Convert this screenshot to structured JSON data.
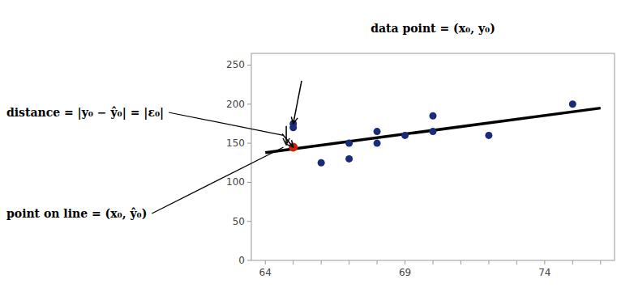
{
  "chart_data": {
    "type": "scatter",
    "x": [
      65,
      65,
      66,
      67,
      67,
      68,
      68,
      69,
      70,
      70,
      72,
      75
    ],
    "values": [
      175,
      170,
      125,
      130,
      150,
      150,
      165,
      160,
      185,
      165,
      160,
      200
    ],
    "color": "#1a2b7a",
    "special_point": {
      "x": 65,
      "y": 145,
      "color": "#cc2200"
    },
    "line": {
      "x": [
        64,
        76
      ],
      "values": [
        138,
        195
      ],
      "color": "#000000"
    },
    "xlim": [
      63.5,
      76.5
    ],
    "ylim": [
      0,
      265
    ],
    "xticks": [
      64,
      {
        "value": 65,
        "label": null
      },
      {
        "value": 66,
        "label": null
      },
      {
        "value": 67,
        "label": null
      },
      {
        "value": 68,
        "label": null
      },
      69,
      {
        "value": 70,
        "label": null
      },
      {
        "value": 71,
        "label": null
      },
      {
        "value": 72,
        "label": null
      },
      {
        "value": 73,
        "label": null
      },
      74,
      {
        "value": 75,
        "label": null
      },
      {
        "value": 76,
        "label": null
      }
    ],
    "yticks": [
      0,
      50,
      100,
      150,
      200,
      250
    ],
    "grid": false,
    "arrows": [
      {
        "x": [
          65.3,
          65
        ],
        "y": [
          230,
          175
        ]
      },
      {
        "x": [
          64.6,
          65
        ],
        "y": [
          162,
          145
        ]
      },
      {
        "x": [
          64.75,
          64.75
        ],
        "y": [
          172,
          148
        ]
      }
    ],
    "annotations": [
      {
        "text": "data point = (x₀, y₀)"
      },
      {
        "text": "distance = |y₀ − ŷ₀| = |ε₀|",
        "target_x": 64.65,
        "target_y": 160
      },
      {
        "text": "point on line = (x₀, ŷ₀)",
        "target_x": 64.65,
        "target_y": 145
      }
    ]
  }
}
